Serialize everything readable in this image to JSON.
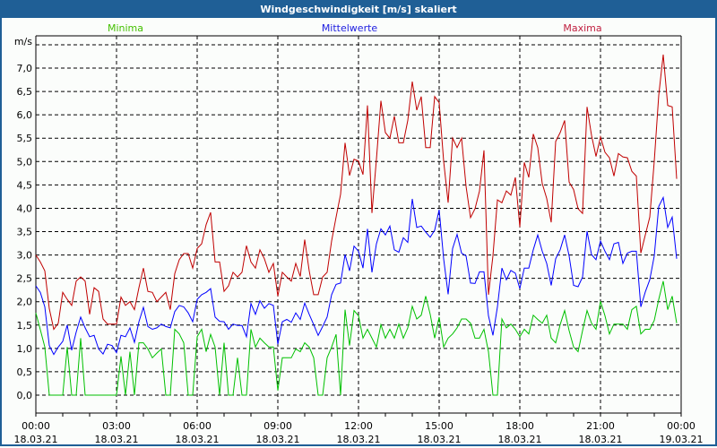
{
  "window": {
    "title": "Windgeschwindigkeit [m/s] skaliert"
  },
  "chart_data": {
    "type": "line",
    "title": "Windgeschwindigkeit [m/s] skaliert",
    "ylabel": "m/s",
    "ylim": [
      0,
      7.7
    ],
    "ygrid_step": 0.5,
    "y_ticks": [
      "0,0",
      "0,5",
      "1,0",
      "1,5",
      "2,0",
      "2,5",
      "3,0",
      "3,5",
      "4,0",
      "4,5",
      "5,0",
      "5,5",
      "6,0",
      "6,5",
      "7,0"
    ],
    "x_range_hours": [
      0,
      24
    ],
    "x_interval_minutes": 10,
    "x_ticks": [
      {
        "time": "00:00",
        "date": "18.03.21"
      },
      {
        "time": "03:00",
        "date": "18.03.21"
      },
      {
        "time": "06:00",
        "date": "18.03.21"
      },
      {
        "time": "09:00",
        "date": "18.03.21"
      },
      {
        "time": "12:00",
        "date": "18.03.21"
      },
      {
        "time": "15:00",
        "date": "18.03.21"
      },
      {
        "time": "18:00",
        "date": "18.03.21"
      },
      {
        "time": "21:00",
        "date": "18.03.21"
      },
      {
        "time": "00:00",
        "date": "19.03.21"
      }
    ],
    "grid": true,
    "legend_placement": "top",
    "series": [
      {
        "name": "Minima",
        "color": "#00c000",
        "legend_color": "#44c000",
        "values": [
          1.76,
          1.4,
          1.03,
          0,
          0,
          0,
          0,
          1.03,
          0,
          0,
          1.22,
          0,
          0,
          0,
          0,
          0,
          0,
          0,
          0,
          0.83,
          0,
          0.93,
          0,
          1.12,
          1.12,
          0.99,
          0.8,
          0.9,
          0.99,
          0,
          0,
          1.41,
          1.31,
          1.12,
          0,
          0,
          1.25,
          1.41,
          0.93,
          1.3,
          1.03,
          0,
          1.12,
          0,
          0,
          0.8,
          0,
          0,
          1.41,
          1.03,
          1.22,
          1.12,
          1.03,
          1.03,
          0.1,
          0.8,
          0.8,
          0.8,
          0.99,
          0.93,
          1.12,
          1.03,
          0.8,
          0,
          0,
          0.8,
          1.03,
          1.3,
          0,
          1.83,
          1.06,
          1.81,
          1.7,
          1.22,
          1.41,
          1.22,
          1.03,
          1.51,
          1.22,
          1.41,
          1.22,
          1.52,
          1.22,
          1.44,
          1.9,
          1.63,
          1.71,
          2.12,
          1.73,
          1.22,
          1.67,
          1.03,
          1.22,
          1.31,
          1.44,
          1.63,
          1.63,
          1.54,
          1.22,
          1.22,
          1.41,
          0.93,
          0,
          0,
          1.63,
          1.44,
          1.52,
          1.41,
          1.25,
          1.41,
          1.31,
          1.71,
          1.62,
          1.54,
          1.71,
          1.22,
          1.12,
          1.51,
          1.81,
          1.38,
          1.03,
          0.93,
          1.38,
          1.81,
          1.54,
          1.41,
          2.01,
          1.7,
          1.31,
          1.52,
          1.52,
          1.52,
          1.41,
          1.83,
          1.9,
          1.31,
          1.41,
          1.41,
          1.6,
          2.05,
          2.44,
          1.83,
          2.12,
          1.54
        ]
      },
      {
        "name": "Mittelwerte",
        "color": "#0000ff",
        "legend_color": "#2020e0",
        "values": [
          2.34,
          2.2,
          1.89,
          1.06,
          0.87,
          1.03,
          1.15,
          1.5,
          0.96,
          1.35,
          1.67,
          1.44,
          1.25,
          1.28,
          0.99,
          0.88,
          1.09,
          1.06,
          0.91,
          1.28,
          1.25,
          1.44,
          1.13,
          1.57,
          1.88,
          1.47,
          1.41,
          1.44,
          1.52,
          1.47,
          1.44,
          1.79,
          1.92,
          1.89,
          1.76,
          1.57,
          2.05,
          2.15,
          2.2,
          2.28,
          1.67,
          1.58,
          1.57,
          1.41,
          1.52,
          1.49,
          1.49,
          1.25,
          1.96,
          1.73,
          2.02,
          1.86,
          1.96,
          1.92,
          1.09,
          1.57,
          1.62,
          1.56,
          1.76,
          1.62,
          1.97,
          1.73,
          1.51,
          1.28,
          1.47,
          1.67,
          2.15,
          2.37,
          2.4,
          3.01,
          2.66,
          3.19,
          3.08,
          2.72,
          3.56,
          2.63,
          3.24,
          3.56,
          3.43,
          3.62,
          3.11,
          3.06,
          3.37,
          3.27,
          4.2,
          3.59,
          3.62,
          3.49,
          3.38,
          3.53,
          3.97,
          2.92,
          2.16,
          3.14,
          3.44,
          3.04,
          2.98,
          2.4,
          2.39,
          2.64,
          2.64,
          1.7,
          1.28,
          1.89,
          2.72,
          2.47,
          2.67,
          2.61,
          2.28,
          2.72,
          2.72,
          3.11,
          3.43,
          3.08,
          2.82,
          2.35,
          2.92,
          3.11,
          3.43,
          2.98,
          2.35,
          2.32,
          2.53,
          3.51,
          3.01,
          2.9,
          3.3,
          3.08,
          2.9,
          3.24,
          3.27,
          2.82,
          3.04,
          3.08,
          3.08,
          1.89,
          2.21,
          2.47,
          2.98,
          4.04,
          4.23,
          3.59,
          3.81,
          2.92
        ]
      },
      {
        "name": "Maxima",
        "color": "#c00000",
        "legend_color": "#c02040",
        "values": [
          3.0,
          2.85,
          2.66,
          1.85,
          1.41,
          1.54,
          2.2,
          2.05,
          1.92,
          2.44,
          2.53,
          2.44,
          1.73,
          2.3,
          2.22,
          1.63,
          1.52,
          1.52,
          1.52,
          2.1,
          1.92,
          2.0,
          1.83,
          2.3,
          2.72,
          2.22,
          2.2,
          2.0,
          2.1,
          2.2,
          1.83,
          2.6,
          2.9,
          3.03,
          3.03,
          2.72,
          3.14,
          3.24,
          3.65,
          3.91,
          2.85,
          2.85,
          2.22,
          2.34,
          2.63,
          2.53,
          2.63,
          3.2,
          2.85,
          2.72,
          3.11,
          2.92,
          2.63,
          2.82,
          2.12,
          2.63,
          2.53,
          2.44,
          2.82,
          2.54,
          3.33,
          2.66,
          2.15,
          2.15,
          2.53,
          2.63,
          3.3,
          3.81,
          4.3,
          5.4,
          4.7,
          5.05,
          5.01,
          4.72,
          6.2,
          3.9,
          5.05,
          6.3,
          5.62,
          5.5,
          5.97,
          5.4,
          5.4,
          5.88,
          6.71,
          6.1,
          6.39,
          5.3,
          5.3,
          6.39,
          6.26,
          5.01,
          4.12,
          5.5,
          5.3,
          5.5,
          4.47,
          3.8,
          3.99,
          4.37,
          5.24,
          2.15,
          2.98,
          4.18,
          4.12,
          4.37,
          4.28,
          4.66,
          3.6,
          4.98,
          4.66,
          5.59,
          5.3,
          4.53,
          4.21,
          3.7,
          5.43,
          5.62,
          5.88,
          4.56,
          4.4,
          3.99,
          3.89,
          6.17,
          5.56,
          5.11,
          5.53,
          5.2,
          5.08,
          4.69,
          5.17,
          5.1,
          5.08,
          4.79,
          4.69,
          3.04,
          3.43,
          3.81,
          5.01,
          6.42,
          7.29,
          6.2,
          6.17,
          4.63
        ]
      }
    ]
  }
}
